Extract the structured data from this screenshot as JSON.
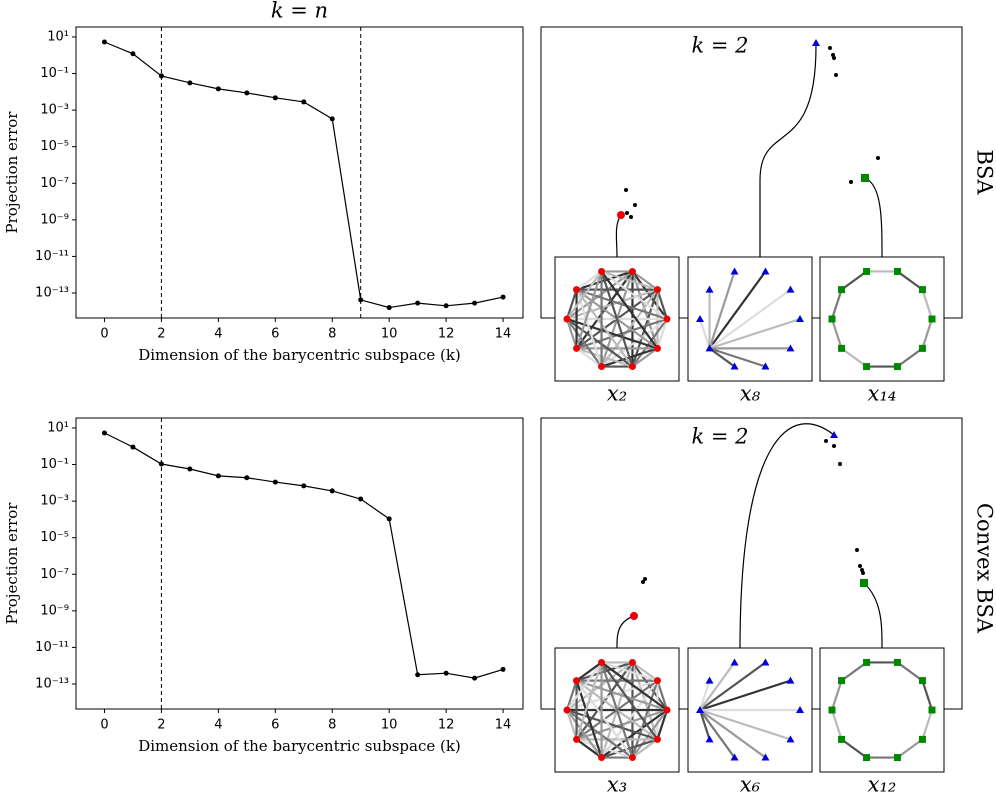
{
  "chart_data": [
    {
      "type": "line",
      "title": "k = n",
      "xlabel": "Dimension of the barycentric subspace (k)",
      "ylabel": "Projection error",
      "x": [
        0,
        1,
        2,
        3,
        4,
        5,
        6,
        7,
        8,
        9,
        10,
        11,
        12,
        13,
        14
      ],
      "values": [
        5.3,
        1.2,
        0.074,
        0.031,
        0.0145,
        0.0087,
        0.0047,
        0.0028,
        0.00033,
        4.2e-14,
        1.6e-14,
        2.8e-14,
        2e-14,
        2.8e-14,
        6e-14
      ],
      "color": "#000000",
      "log_y": true,
      "xlim": [
        -1,
        14.7
      ],
      "ylim": [
        35,
        4.3e-15
      ],
      "xticks": [
        0,
        2,
        4,
        6,
        8,
        10,
        12,
        14
      ],
      "yticks": [
        {
          "value": 10,
          "label": "10¹"
        },
        {
          "value": 0.1,
          "label": "10⁻¹"
        },
        {
          "value": 0.001,
          "label": "10⁻³"
        },
        {
          "value": 1e-05,
          "label": "10⁻⁵"
        },
        {
          "value": 1e-07,
          "label": "10⁻⁷"
        },
        {
          "value": 1e-09,
          "label": "10⁻⁹"
        },
        {
          "value": 1e-11,
          "label": "10⁻¹¹"
        },
        {
          "value": 1e-13,
          "label": "10⁻¹³"
        }
      ],
      "vlines": [
        2,
        9
      ]
    },
    {
      "type": "line",
      "xlabel": "Dimension of the barycentric subspace (k)",
      "ylabel": "Projection error",
      "x": [
        0,
        1,
        2,
        3,
        4,
        5,
        6,
        7,
        8,
        9,
        10,
        11,
        12,
        13,
        14
      ],
      "values": [
        5.3,
        0.9,
        0.107,
        0.057,
        0.024,
        0.019,
        0.011,
        0.0068,
        0.0036,
        0.0013,
        0.000107,
        3.2e-13,
        3.9e-13,
        2.1e-13,
        6.3e-13
      ],
      "color": "#000000",
      "log_y": true,
      "xlim": [
        -1,
        14.7
      ],
      "ylim": [
        35,
        4.3e-15
      ],
      "xticks": [
        0,
        2,
        4,
        6,
        8,
        10,
        12,
        14
      ],
      "yticks": [
        {
          "value": 10,
          "label": "10¹"
        },
        {
          "value": 0.1,
          "label": "10⁻¹"
        },
        {
          "value": 0.001,
          "label": "10⁻³"
        },
        {
          "value": 1e-05,
          "label": "10⁻⁵"
        },
        {
          "value": 1e-07,
          "label": "10⁻⁷"
        },
        {
          "value": 1e-09,
          "label": "10⁻⁹"
        },
        {
          "value": 1e-11,
          "label": "10⁻¹¹"
        },
        {
          "value": 1e-13,
          "label": "10⁻¹³"
        }
      ],
      "vlines": [
        2
      ]
    }
  ],
  "panels": [
    {
      "annotation": "k = 2",
      "row_label": "BSA",
      "insets": [
        "x₂",
        "x₈",
        "x₁₄"
      ]
    },
    {
      "annotation": "k = 2",
      "row_label": "Convex BSA",
      "insets": [
        "x₃",
        "x₆",
        "x₁₂"
      ]
    }
  ]
}
